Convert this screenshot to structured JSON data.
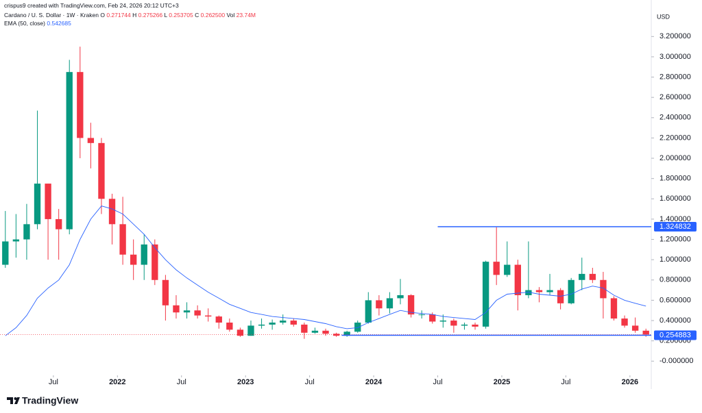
{
  "header": {
    "credit": "crispus9 created with TradingView.com, Feb 24, 2026 20:12 UTC+3",
    "symbol": "Cardano / U. S. Dollar · 1W · Kraken",
    "ohlc": [
      {
        "key": "O",
        "value": "0.271744"
      },
      {
        "key": "H",
        "value": "0.275266"
      },
      {
        "key": "L",
        "value": "0.253705"
      },
      {
        "key": "C",
        "value": "0.262500"
      },
      {
        "key": "Vol",
        "value": "23.74M"
      }
    ],
    "indicator": "EMA (50, close)",
    "indicator_value": "0.542685",
    "currency": "USD",
    "brand": "TradingView"
  },
  "chart_data": {
    "type": "candlestick",
    "up_color": "#089981",
    "down_color": "#f23645",
    "x": [
      "2021-02",
      "2021-03",
      "2021-04",
      "2021-05",
      "2021-06",
      "2021-07",
      "2021-08",
      "2021-09",
      "2021-10",
      "2021-11",
      "2021-12",
      "2022-01",
      "2022-02",
      "2022-03",
      "2022-04",
      "2022-05",
      "2022-06",
      "2022-07",
      "2022-08",
      "2022-09",
      "2022-10",
      "2022-11",
      "2022-12",
      "2023-01",
      "2023-02",
      "2023-03",
      "2023-04",
      "2023-05",
      "2023-06",
      "2023-07",
      "2023-08",
      "2023-09",
      "2023-10",
      "2023-11",
      "2023-12",
      "2024-01",
      "2024-02",
      "2024-03",
      "2024-04",
      "2024-05",
      "2024-06",
      "2024-07",
      "2024-08",
      "2024-09",
      "2024-10",
      "2024-11",
      "2024-12",
      "2025-01",
      "2025-02",
      "2025-03",
      "2025-04",
      "2025-05",
      "2025-06",
      "2025-07",
      "2025-08",
      "2025-09",
      "2025-10",
      "2025-11",
      "2025-12",
      "2026-01",
      "2026-02"
    ],
    "open": [
      0.95,
      1.18,
      1.2,
      1.35,
      1.75,
      1.4,
      1.3,
      2.85,
      2.2,
      2.15,
      1.6,
      1.35,
      1.05,
      0.95,
      1.15,
      0.8,
      0.55,
      0.48,
      0.5,
      0.45,
      0.44,
      0.38,
      0.31,
      0.25,
      0.35,
      0.36,
      0.38,
      0.4,
      0.36,
      0.28,
      0.3,
      0.27,
      0.25,
      0.29,
      0.38,
      0.6,
      0.52,
      0.62,
      0.65,
      0.46,
      0.46,
      0.39,
      0.4,
      0.35,
      0.36,
      0.34,
      0.98,
      0.85,
      0.95,
      0.65,
      0.7,
      0.68,
      0.7,
      0.57,
      0.8,
      0.86,
      0.8,
      0.62,
      0.42,
      0.35,
      0.3
    ],
    "high": [
      1.48,
      1.45,
      1.55,
      2.47,
      1.75,
      1.5,
      2.97,
      3.1,
      2.35,
      2.2,
      1.65,
      1.62,
      1.2,
      1.25,
      1.2,
      0.85,
      0.65,
      0.58,
      0.55,
      0.52,
      0.45,
      0.42,
      0.33,
      0.4,
      0.42,
      0.41,
      0.46,
      0.42,
      0.38,
      0.33,
      0.32,
      0.28,
      0.3,
      0.4,
      0.68,
      0.65,
      0.68,
      0.81,
      0.66,
      0.5,
      0.48,
      0.46,
      0.42,
      0.38,
      0.38,
      0.99,
      1.32,
      1.18,
      1.0,
      1.18,
      0.73,
      0.86,
      0.72,
      0.82,
      1.02,
      0.92,
      0.88,
      0.64,
      0.45,
      0.43,
      0.32
    ],
    "low": [
      0.92,
      1.02,
      1.0,
      1.3,
      1.0,
      1.0,
      1.25,
      2.0,
      1.9,
      1.45,
      1.15,
      0.95,
      0.8,
      0.8,
      0.75,
      0.4,
      0.42,
      0.42,
      0.42,
      0.39,
      0.32,
      0.29,
      0.24,
      0.25,
      0.32,
      0.31,
      0.36,
      0.34,
      0.22,
      0.27,
      0.25,
      0.24,
      0.24,
      0.28,
      0.37,
      0.45,
      0.47,
      0.56,
      0.43,
      0.42,
      0.37,
      0.33,
      0.28,
      0.31,
      0.31,
      0.32,
      0.75,
      0.83,
      0.5,
      0.62,
      0.58,
      0.65,
      0.51,
      0.56,
      0.7,
      0.77,
      0.42,
      0.4,
      0.33,
      0.28,
      0.24
    ],
    "close": [
      1.18,
      1.2,
      1.35,
      1.75,
      1.4,
      1.3,
      2.85,
      2.2,
      2.15,
      1.6,
      1.35,
      1.05,
      0.95,
      1.15,
      0.8,
      0.55,
      0.48,
      0.5,
      0.45,
      0.44,
      0.38,
      0.31,
      0.25,
      0.35,
      0.36,
      0.38,
      0.4,
      0.36,
      0.28,
      0.3,
      0.27,
      0.25,
      0.29,
      0.38,
      0.6,
      0.52,
      0.62,
      0.65,
      0.46,
      0.46,
      0.39,
      0.4,
      0.35,
      0.36,
      0.34,
      0.98,
      0.85,
      0.95,
      0.65,
      0.7,
      0.68,
      0.7,
      0.57,
      0.8,
      0.86,
      0.8,
      0.62,
      0.42,
      0.35,
      0.3,
      0.2625
    ],
    "series": [
      {
        "name": "EMA (50, close)",
        "color": "#2962ff",
        "values": [
          0.25,
          0.33,
          0.45,
          0.62,
          0.72,
          0.8,
          0.95,
          1.2,
          1.4,
          1.53,
          1.5,
          1.45,
          1.35,
          1.25,
          1.12,
          1.0,
          0.9,
          0.82,
          0.75,
          0.68,
          0.62,
          0.56,
          0.52,
          0.48,
          0.46,
          0.44,
          0.43,
          0.42,
          0.41,
          0.39,
          0.37,
          0.34,
          0.32,
          0.33,
          0.38,
          0.42,
          0.46,
          0.5,
          0.48,
          0.47,
          0.46,
          0.44,
          0.43,
          0.42,
          0.41,
          0.48,
          0.6,
          0.66,
          0.67,
          0.68,
          0.66,
          0.65,
          0.64,
          0.66,
          0.71,
          0.74,
          0.72,
          0.65,
          0.6,
          0.57,
          0.542685
        ]
      }
    ],
    "hlines": [
      {
        "value": 1.324832,
        "label": "1.324832",
        "from": "2024-07",
        "color": "#2962ff"
      },
      {
        "value": 0.254883,
        "label": "0.254883",
        "from": "2023-10",
        "color": "#2962ff"
      }
    ],
    "xlim": [
      "2021-02",
      "2026-03"
    ],
    "xticks": [
      {
        "value": "2021-07",
        "label": "Jul"
      },
      {
        "value": "2022-01",
        "label": "2022"
      },
      {
        "value": "2022-07",
        "label": "Jul"
      },
      {
        "value": "2023-01",
        "label": "2023"
      },
      {
        "value": "2023-07",
        "label": "Jul"
      },
      {
        "value": "2024-01",
        "label": "2024"
      },
      {
        "value": "2024-07",
        "label": "Jul"
      },
      {
        "value": "2025-01",
        "label": "2025"
      },
      {
        "value": "2025-07",
        "label": "Jul"
      },
      {
        "value": "2026-01",
        "label": "2026"
      }
    ],
    "ylim": [
      -0.14,
      3.56
    ],
    "yticks": [
      {
        "value": 0,
        "label": "-0.000000"
      },
      {
        "value": 0.2,
        "label": "0.200000"
      },
      {
        "value": 0.4,
        "label": "0.400000"
      },
      {
        "value": 0.6,
        "label": "0.600000"
      },
      {
        "value": 0.8,
        "label": "0.800000"
      },
      {
        "value": 1.0,
        "label": "1.000000"
      },
      {
        "value": 1.2,
        "label": "1.200000"
      },
      {
        "value": 1.4,
        "label": "1.400000"
      },
      {
        "value": 1.6,
        "label": "1.600000"
      },
      {
        "value": 1.8,
        "label": "1.800000"
      },
      {
        "value": 2.0,
        "label": "2.000000"
      },
      {
        "value": 2.2,
        "label": "2.200000"
      },
      {
        "value": 2.4,
        "label": "2.400000"
      },
      {
        "value": 2.6,
        "label": "2.600000"
      },
      {
        "value": 2.8,
        "label": "2.800000"
      },
      {
        "value": 3.0,
        "label": "3.000000"
      },
      {
        "value": 3.2,
        "label": "3.200000"
      }
    ]
  }
}
